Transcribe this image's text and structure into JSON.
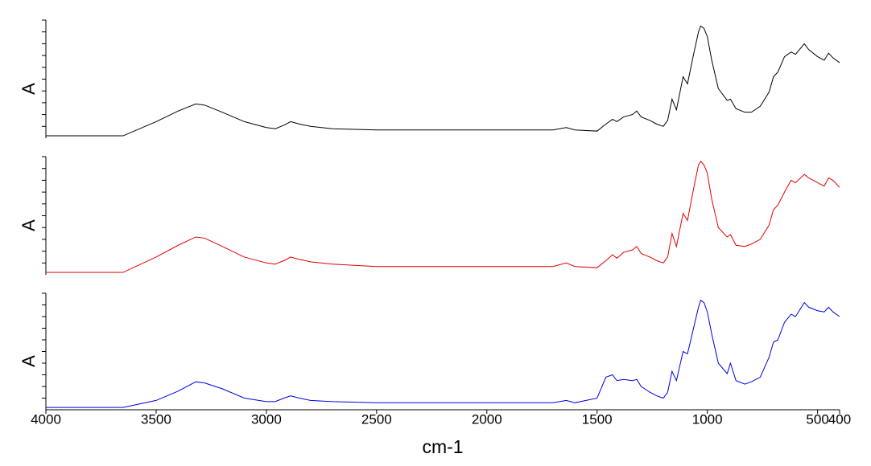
{
  "chart_data": [
    {
      "type": "line",
      "ylabel": "A",
      "color": "#000000",
      "xlim": [
        4000,
        400
      ],
      "ylim": [
        0,
        1
      ],
      "yticks": [
        0.1,
        0.2,
        0.3,
        0.4,
        0.5,
        0.6,
        0.7,
        0.8,
        0.9,
        1
      ],
      "x": [
        4000,
        3650,
        3500,
        3400,
        3320,
        3280,
        3200,
        3100,
        3000,
        2960,
        2920,
        2890,
        2850,
        2800,
        2700,
        2500,
        2000,
        1700,
        1640,
        1600,
        1500,
        1460,
        1430,
        1410,
        1380,
        1340,
        1320,
        1300,
        1260,
        1230,
        1200,
        1180,
        1160,
        1140,
        1110,
        1090,
        1060,
        1040,
        1030,
        1015,
        1000,
        980,
        950,
        910,
        895,
        870,
        830,
        800,
        760,
        720,
        700,
        680,
        650,
        620,
        600,
        560,
        540,
        500,
        470,
        450,
        430,
        400
      ],
      "values": [
        0.02,
        0.02,
        0.14,
        0.23,
        0.29,
        0.28,
        0.22,
        0.14,
        0.09,
        0.08,
        0.11,
        0.14,
        0.12,
        0.1,
        0.08,
        0.07,
        0.07,
        0.07,
        0.09,
        0.07,
        0.06,
        0.12,
        0.16,
        0.14,
        0.18,
        0.2,
        0.23,
        0.18,
        0.15,
        0.12,
        0.1,
        0.15,
        0.33,
        0.24,
        0.52,
        0.46,
        0.73,
        0.9,
        0.95,
        0.93,
        0.86,
        0.66,
        0.42,
        0.32,
        0.33,
        0.25,
        0.22,
        0.22,
        0.27,
        0.39,
        0.52,
        0.56,
        0.69,
        0.73,
        0.71,
        0.8,
        0.75,
        0.69,
        0.66,
        0.72,
        0.68,
        0.64
      ]
    },
    {
      "type": "line",
      "ylabel": "A",
      "color": "#e00000",
      "xlim": [
        4000,
        400
      ],
      "ylim": [
        0,
        1
      ],
      "yticks": [
        0.1,
        0.2,
        0.3,
        0.4,
        0.5,
        0.6,
        0.7,
        0.8,
        0.9,
        1
      ],
      "x": [
        4000,
        3650,
        3500,
        3400,
        3320,
        3280,
        3200,
        3100,
        3000,
        2960,
        2920,
        2890,
        2850,
        2800,
        2700,
        2500,
        2000,
        1700,
        1640,
        1600,
        1500,
        1460,
        1430,
        1410,
        1380,
        1340,
        1320,
        1300,
        1260,
        1230,
        1200,
        1180,
        1160,
        1140,
        1110,
        1090,
        1060,
        1040,
        1030,
        1015,
        1000,
        980,
        950,
        910,
        895,
        870,
        830,
        800,
        760,
        720,
        700,
        680,
        650,
        620,
        600,
        560,
        540,
        500,
        470,
        450,
        430,
        400
      ],
      "values": [
        0.02,
        0.02,
        0.15,
        0.25,
        0.32,
        0.31,
        0.24,
        0.15,
        0.1,
        0.09,
        0.12,
        0.15,
        0.13,
        0.11,
        0.09,
        0.07,
        0.07,
        0.07,
        0.1,
        0.07,
        0.06,
        0.12,
        0.17,
        0.14,
        0.19,
        0.21,
        0.24,
        0.18,
        0.15,
        0.12,
        0.1,
        0.15,
        0.35,
        0.24,
        0.52,
        0.46,
        0.75,
        0.93,
        0.96,
        0.93,
        0.86,
        0.64,
        0.4,
        0.32,
        0.34,
        0.25,
        0.24,
        0.26,
        0.3,
        0.42,
        0.55,
        0.59,
        0.7,
        0.8,
        0.78,
        0.85,
        0.82,
        0.78,
        0.75,
        0.82,
        0.8,
        0.74
      ]
    },
    {
      "type": "line",
      "ylabel": "A",
      "color": "#0000e0",
      "xlabel": "cm-1",
      "xlim": [
        4000,
        400
      ],
      "xticks": [
        4000,
        3500,
        3000,
        2500,
        2000,
        1500,
        1000,
        500,
        400
      ],
      "ylim": [
        0,
        1
      ],
      "yticks": [
        0.1,
        0.2,
        0.3,
        0.4,
        0.5,
        0.6,
        0.7,
        0.8,
        0.9,
        1
      ],
      "x": [
        4000,
        3650,
        3500,
        3400,
        3320,
        3280,
        3200,
        3100,
        3000,
        2960,
        2920,
        2890,
        2850,
        2800,
        2700,
        2500,
        2000,
        1700,
        1640,
        1600,
        1500,
        1460,
        1430,
        1410,
        1380,
        1340,
        1320,
        1300,
        1260,
        1230,
        1200,
        1180,
        1160,
        1140,
        1110,
        1090,
        1060,
        1040,
        1030,
        1015,
        1000,
        980,
        950,
        910,
        895,
        870,
        830,
        800,
        760,
        720,
        700,
        680,
        650,
        620,
        600,
        560,
        540,
        500,
        470,
        450,
        430,
        400
      ],
      "values": [
        0.02,
        0.02,
        0.08,
        0.16,
        0.24,
        0.23,
        0.18,
        0.1,
        0.07,
        0.07,
        0.1,
        0.12,
        0.1,
        0.08,
        0.07,
        0.06,
        0.06,
        0.06,
        0.08,
        0.06,
        0.1,
        0.28,
        0.3,
        0.25,
        0.26,
        0.25,
        0.26,
        0.2,
        0.15,
        0.12,
        0.1,
        0.15,
        0.33,
        0.25,
        0.5,
        0.48,
        0.72,
        0.88,
        0.94,
        0.92,
        0.84,
        0.65,
        0.4,
        0.31,
        0.4,
        0.25,
        0.22,
        0.24,
        0.28,
        0.45,
        0.58,
        0.6,
        0.75,
        0.82,
        0.8,
        0.92,
        0.88,
        0.85,
        0.84,
        0.88,
        0.84,
        0.8
      ]
    }
  ]
}
